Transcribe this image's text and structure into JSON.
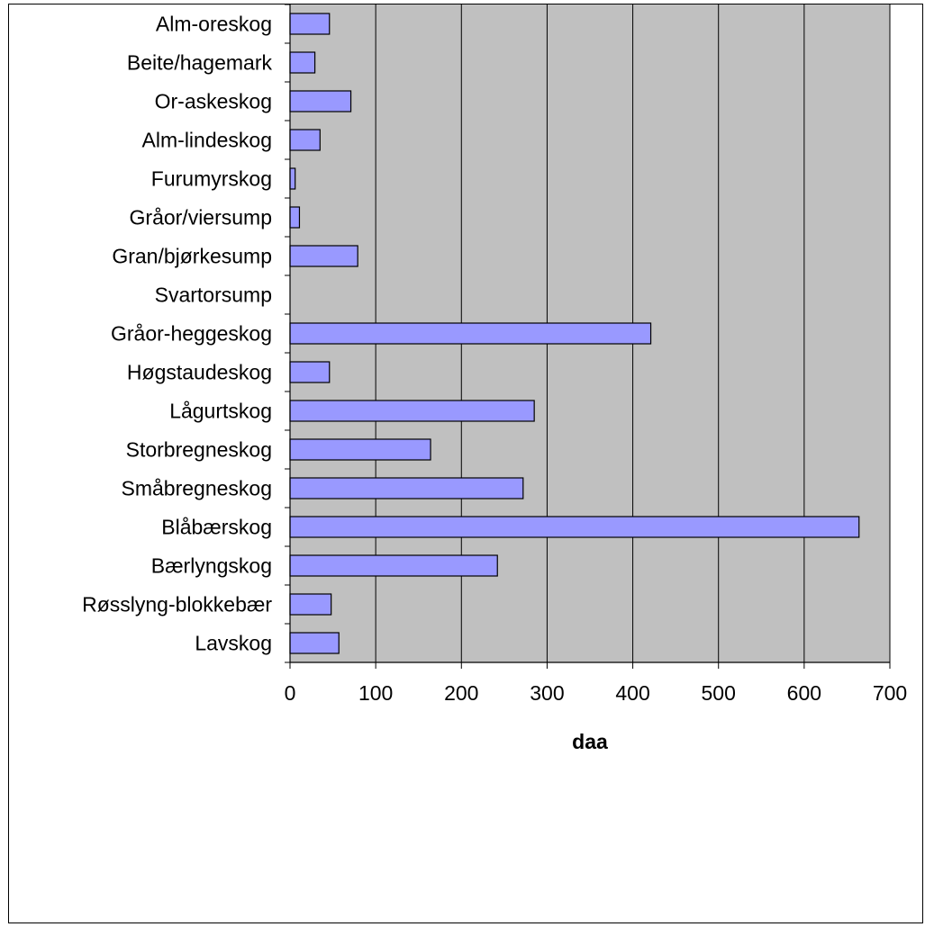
{
  "chart_data": {
    "type": "bar",
    "orientation": "horizontal",
    "title": "",
    "xlabel": "daa",
    "ylabel": "",
    "xlim": [
      0,
      700
    ],
    "xticks": [
      0,
      100,
      200,
      300,
      400,
      500,
      600,
      700
    ],
    "grid": "vertical gridlines",
    "legend": "none",
    "categories": [
      "Alm-oreskog",
      "Beite/hagemark",
      "Or-askeskog",
      "Alm-lindeskog",
      "Furumyrskog",
      "Gråor/viersump",
      "Gran/bjørkesump",
      "Svartorsump",
      "Gråor-heggeskog",
      "Høgstaudeskog",
      "Lågurtskog",
      "Storbregneskog",
      "Småbregneskog",
      "Blåbærskog",
      "Bærlyngskog",
      "Røsslyng-blokkebær",
      "Lavskog"
    ],
    "values": [
      46,
      29,
      71,
      35,
      6,
      11,
      79,
      0,
      421,
      46,
      285,
      164,
      272,
      664,
      242,
      48,
      57
    ],
    "colors": {
      "bar_fill": "#9999ff",
      "bar_stroke": "#000000",
      "plot_background": "#c0c0c0",
      "gridline": "#000000"
    }
  }
}
